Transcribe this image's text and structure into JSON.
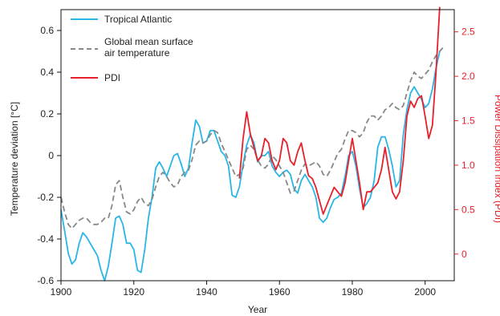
{
  "chart_data": {
    "type": "line",
    "title": "",
    "xlabel": "Year",
    "ylabel_left": "Temperature deviation [°C]",
    "ylabel_right": "Power Dissipation Index (PDI)",
    "xlim": [
      1900,
      2008
    ],
    "ylim_left": [
      -0.6,
      0.7
    ],
    "ylim_right": [
      -0.3,
      2.75
    ],
    "x_ticks": [
      "1900",
      "1920",
      "1940",
      "1960",
      "1980",
      "2000"
    ],
    "y_left_ticks": [
      "-0.6",
      "-0.4",
      "-0.2",
      "0",
      "0.2",
      "0.4",
      "0.6"
    ],
    "y_right_ticks": [
      "0",
      "0.5",
      "1.0",
      "1.5",
      "2.0",
      "2.5"
    ],
    "grid": false,
    "legend_position": "top-left",
    "colors": {
      "tropical": "#29b6e6",
      "global": "#888888",
      "pdi": "#e8202a",
      "right_axis": "#e8202a"
    },
    "series": [
      {
        "name": "Tropical Atlantic",
        "axis": "left",
        "style": "solid",
        "x": [
          1900,
          1901,
          1902,
          1903,
          1904,
          1905,
          1906,
          1907,
          1908,
          1909,
          1910,
          1911,
          1912,
          1913,
          1914,
          1915,
          1916,
          1917,
          1918,
          1919,
          1920,
          1921,
          1922,
          1923,
          1924,
          1925,
          1926,
          1927,
          1928,
          1929,
          1930,
          1931,
          1932,
          1933,
          1934,
          1935,
          1936,
          1937,
          1938,
          1939,
          1940,
          1941,
          1942,
          1943,
          1944,
          1945,
          1946,
          1947,
          1948,
          1949,
          1950,
          1951,
          1952,
          1953,
          1954,
          1955,
          1956,
          1957,
          1958,
          1959,
          1960,
          1961,
          1962,
          1963,
          1964,
          1965,
          1966,
          1967,
          1968,
          1969,
          1970,
          1971,
          1972,
          1973,
          1974,
          1975,
          1976,
          1977,
          1978,
          1979,
          1980,
          1981,
          1982,
          1983,
          1984,
          1985,
          1986,
          1987,
          1988,
          1989,
          1990,
          1991,
          1992,
          1993,
          1994,
          1995,
          1996,
          1997,
          1998,
          1999,
          2000,
          2001,
          2002,
          2003,
          2004
        ],
        "values": [
          -0.26,
          -0.36,
          -0.47,
          -0.52,
          -0.5,
          -0.42,
          -0.37,
          -0.39,
          -0.42,
          -0.45,
          -0.48,
          -0.55,
          -0.6,
          -0.53,
          -0.42,
          -0.3,
          -0.29,
          -0.33,
          -0.42,
          -0.42,
          -0.45,
          -0.55,
          -0.56,
          -0.45,
          -0.3,
          -0.2,
          -0.06,
          -0.03,
          -0.06,
          -0.1,
          -0.05,
          0.0,
          0.01,
          -0.04,
          -0.1,
          -0.06,
          0.06,
          0.17,
          0.14,
          0.06,
          0.07,
          0.12,
          0.12,
          0.07,
          0.02,
          0.0,
          -0.05,
          -0.19,
          -0.2,
          -0.15,
          -0.04,
          0.05,
          0.1,
          0.06,
          -0.03,
          0.0,
          0.0,
          0.02,
          -0.05,
          -0.08,
          -0.1,
          -0.08,
          -0.07,
          -0.09,
          -0.16,
          -0.18,
          -0.12,
          -0.09,
          -0.12,
          -0.15,
          -0.2,
          -0.3,
          -0.32,
          -0.3,
          -0.25,
          -0.21,
          -0.2,
          -0.18,
          -0.1,
          0.0,
          0.02,
          -0.05,
          -0.16,
          -0.25,
          -0.23,
          -0.2,
          -0.12,
          0.04,
          0.09,
          0.09,
          0.03,
          -0.05,
          -0.15,
          -0.12,
          0.1,
          0.22,
          0.3,
          0.33,
          0.3,
          0.27,
          0.23,
          0.25,
          0.32,
          0.42,
          0.5
        ]
      },
      {
        "name": "Global mean surface air temperature",
        "axis": "left",
        "style": "dashed",
        "x": [
          1900,
          1901,
          1902,
          1903,
          1904,
          1905,
          1906,
          1907,
          1908,
          1909,
          1910,
          1911,
          1912,
          1913,
          1914,
          1915,
          1916,
          1917,
          1918,
          1919,
          1920,
          1921,
          1922,
          1923,
          1924,
          1925,
          1926,
          1927,
          1928,
          1929,
          1930,
          1931,
          1932,
          1933,
          1934,
          1935,
          1936,
          1937,
          1938,
          1939,
          1940,
          1941,
          1942,
          1943,
          1944,
          1945,
          1946,
          1947,
          1948,
          1949,
          1950,
          1951,
          1952,
          1953,
          1954,
          1955,
          1956,
          1957,
          1958,
          1959,
          1960,
          1961,
          1962,
          1963,
          1964,
          1965,
          1966,
          1967,
          1968,
          1969,
          1970,
          1971,
          1972,
          1973,
          1974,
          1975,
          1976,
          1977,
          1978,
          1979,
          1980,
          1981,
          1982,
          1983,
          1984,
          1985,
          1986,
          1987,
          1988,
          1989,
          1990,
          1991,
          1992,
          1993,
          1994,
          1995,
          1996,
          1997,
          1998,
          1999,
          2000,
          2001,
          2002,
          2003,
          2004,
          2005
        ],
        "values": [
          -0.2,
          -0.27,
          -0.33,
          -0.35,
          -0.33,
          -0.31,
          -0.3,
          -0.3,
          -0.32,
          -0.33,
          -0.33,
          -0.32,
          -0.3,
          -0.3,
          -0.24,
          -0.14,
          -0.12,
          -0.2,
          -0.27,
          -0.28,
          -0.26,
          -0.22,
          -0.2,
          -0.23,
          -0.24,
          -0.21,
          -0.15,
          -0.1,
          -0.08,
          -0.1,
          -0.13,
          -0.15,
          -0.14,
          -0.1,
          -0.08,
          -0.07,
          -0.02,
          0.05,
          0.07,
          0.06,
          0.07,
          0.1,
          0.12,
          0.11,
          0.06,
          0.02,
          -0.02,
          -0.06,
          -0.1,
          -0.09,
          -0.06,
          0.03,
          0.05,
          0.03,
          -0.02,
          -0.05,
          -0.06,
          -0.04,
          0.0,
          -0.02,
          -0.05,
          -0.08,
          -0.13,
          -0.18,
          -0.17,
          -0.12,
          -0.07,
          -0.04,
          -0.05,
          -0.04,
          -0.03,
          -0.05,
          -0.09,
          -0.1,
          -0.07,
          -0.03,
          0.01,
          0.03,
          0.08,
          0.12,
          0.12,
          0.11,
          0.09,
          0.11,
          0.16,
          0.19,
          0.19,
          0.17,
          0.19,
          0.22,
          0.23,
          0.25,
          0.23,
          0.22,
          0.24,
          0.3,
          0.36,
          0.4,
          0.38,
          0.37,
          0.39,
          0.41,
          0.45,
          0.48,
          0.5,
          0.52
        ]
      },
      {
        "name": "PDI",
        "axis": "right",
        "style": "solid",
        "x": [
          1949,
          1950,
          1951,
          1952,
          1953,
          1954,
          1955,
          1956,
          1957,
          1958,
          1959,
          1960,
          1961,
          1962,
          1963,
          1964,
          1965,
          1966,
          1967,
          1968,
          1969,
          1970,
          1971,
          1972,
          1973,
          1974,
          1975,
          1976,
          1977,
          1978,
          1979,
          1980,
          1981,
          1982,
          1983,
          1984,
          1985,
          1986,
          1987,
          1988,
          1989,
          1990,
          1991,
          1992,
          1993,
          1994,
          1995,
          1996,
          1997,
          1998,
          1999,
          2000,
          2001,
          2002,
          2003,
          2004
        ],
        "values": [
          0.85,
          1.3,
          1.6,
          1.35,
          1.2,
          1.05,
          1.1,
          1.3,
          1.25,
          1.05,
          0.95,
          1.05,
          1.3,
          1.25,
          1.05,
          1.0,
          1.15,
          1.25,
          1.05,
          0.88,
          0.85,
          0.75,
          0.6,
          0.45,
          0.55,
          0.65,
          0.75,
          0.7,
          0.65,
          0.8,
          1.05,
          1.3,
          1.05,
          0.8,
          0.5,
          0.7,
          0.7,
          0.75,
          0.8,
          0.95,
          1.2,
          0.95,
          0.7,
          0.62,
          0.7,
          1.05,
          1.55,
          1.72,
          1.65,
          1.75,
          1.78,
          1.55,
          1.3,
          1.45,
          2.05,
          2.78
        ]
      }
    ]
  }
}
